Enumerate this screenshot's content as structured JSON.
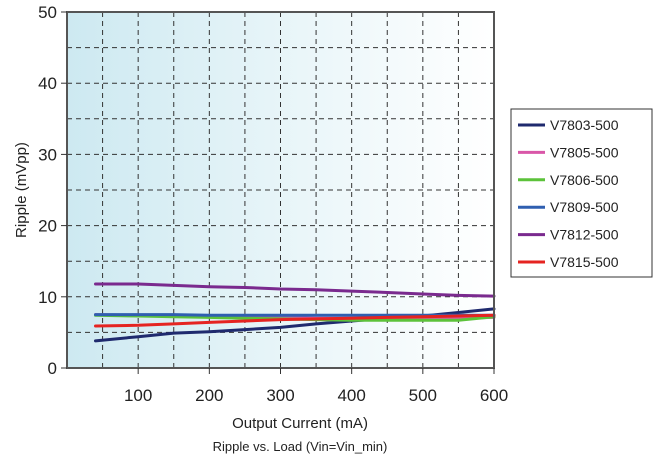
{
  "chart_data": {
    "type": "line",
    "title": "Ripple vs. Load (Vin=Vin_min)",
    "xlabel": "Output Current (mA)",
    "ylabel": "Ripple (mVpp)",
    "xlim": [
      0,
      600
    ],
    "ylim": [
      0,
      50
    ],
    "x_ticks": [
      100,
      200,
      300,
      400,
      500,
      600
    ],
    "y_ticks": [
      0,
      10,
      20,
      30,
      40,
      50
    ],
    "grid": true,
    "legend_position": "right",
    "background": "gradient from light blue (left) to white (right)",
    "series": [
      {
        "name": "V7803-500",
        "color": "#1f2a6e",
        "points": [
          [
            40,
            3.8
          ],
          [
            100,
            4.4
          ],
          [
            150,
            4.9
          ],
          [
            200,
            5.1
          ],
          [
            250,
            5.4
          ],
          [
            300,
            5.7
          ],
          [
            350,
            6.2
          ],
          [
            400,
            6.6
          ],
          [
            450,
            7.0
          ],
          [
            500,
            7.3
          ],
          [
            550,
            7.8
          ],
          [
            600,
            8.3
          ]
        ]
      },
      {
        "name": "V7805-500",
        "color": "#d957a8",
        "points": [
          [
            40,
            7.5
          ],
          [
            100,
            7.4
          ],
          [
            150,
            7.3
          ],
          [
            200,
            7.2
          ],
          [
            250,
            7.1
          ],
          [
            300,
            7.1
          ],
          [
            350,
            7.0
          ],
          [
            400,
            7.0
          ],
          [
            450,
            7.0
          ],
          [
            500,
            7.0
          ],
          [
            550,
            7.0
          ],
          [
            600,
            7.1
          ]
        ]
      },
      {
        "name": "V7806-500",
        "color": "#5cc23a",
        "points": [
          [
            40,
            7.4
          ],
          [
            100,
            7.3
          ],
          [
            150,
            7.2
          ],
          [
            200,
            7.1
          ],
          [
            250,
            7.0
          ],
          [
            300,
            6.9
          ],
          [
            350,
            6.8
          ],
          [
            400,
            6.7
          ],
          [
            450,
            6.7
          ],
          [
            500,
            6.7
          ],
          [
            550,
            6.7
          ],
          [
            600,
            7.2
          ]
        ]
      },
      {
        "name": "V7809-500",
        "color": "#2f5fb0",
        "points": [
          [
            40,
            7.5
          ],
          [
            100,
            7.5
          ],
          [
            150,
            7.5
          ],
          [
            200,
            7.4
          ],
          [
            250,
            7.4
          ],
          [
            300,
            7.4
          ],
          [
            350,
            7.4
          ],
          [
            400,
            7.4
          ],
          [
            450,
            7.4
          ],
          [
            500,
            7.4
          ],
          [
            550,
            7.4
          ],
          [
            600,
            7.4
          ]
        ]
      },
      {
        "name": "V7812-500",
        "color": "#7a2a8e",
        "points": [
          [
            40,
            11.8
          ],
          [
            100,
            11.8
          ],
          [
            150,
            11.6
          ],
          [
            200,
            11.4
          ],
          [
            250,
            11.3
          ],
          [
            300,
            11.1
          ],
          [
            350,
            11.0
          ],
          [
            400,
            10.8
          ],
          [
            450,
            10.6
          ],
          [
            500,
            10.4
          ],
          [
            550,
            10.2
          ],
          [
            600,
            10.1
          ]
        ]
      },
      {
        "name": "V7815-500",
        "color": "#e52421",
        "points": [
          [
            40,
            5.9
          ],
          [
            100,
            6.0
          ],
          [
            150,
            6.2
          ],
          [
            200,
            6.4
          ],
          [
            250,
            6.6
          ],
          [
            300,
            6.8
          ],
          [
            350,
            6.9
          ],
          [
            400,
            7.0
          ],
          [
            450,
            7.1
          ],
          [
            500,
            7.2
          ],
          [
            550,
            7.3
          ],
          [
            600,
            7.4
          ]
        ]
      }
    ]
  }
}
